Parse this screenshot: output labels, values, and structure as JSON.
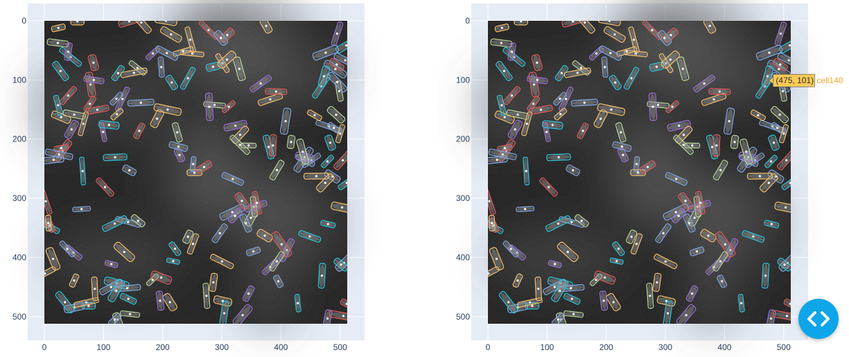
{
  "colors": {
    "axis_bg": "#e5ecf6",
    "grid": "#ffffff",
    "tick_text": "#2a3f5f",
    "cell_palette": [
      "#e05b5b",
      "#9b6fd6",
      "#f0c070",
      "#b6d39b",
      "#2ec4d9",
      "#7fa6e0"
    ],
    "hover_bg": "#ffca57",
    "hover_accent": "#f5a623",
    "nav_button": "#0ea5e9"
  },
  "left_plot": {
    "x_ticks": [
      "0",
      "100",
      "200",
      "300",
      "400",
      "500"
    ],
    "y_ticks": [
      "0",
      "100",
      "200",
      "300",
      "400",
      "500"
    ]
  },
  "right_plot": {
    "x_ticks": [
      "0",
      "100",
      "200",
      "300",
      "400",
      "500"
    ],
    "y_ticks": [
      "0",
      "100",
      "200",
      "300",
      "400",
      "500"
    ],
    "hover": {
      "coords": "(475, 101)",
      "cell_label": "cell140",
      "x": 475,
      "y": 101
    }
  },
  "image_extent": [
    0,
    512
  ],
  "nav_button": {
    "icon": "code-brackets-icon"
  }
}
